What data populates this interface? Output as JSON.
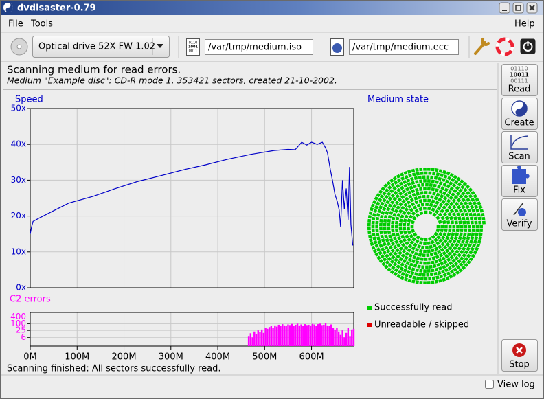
{
  "window": {
    "title": "dvdisaster-0.79"
  },
  "menu": [
    "File",
    "Tools",
    "Help"
  ],
  "toolbar": {
    "drive": "Optical drive 52X FW 1.02",
    "image_icon": [
      "0110",
      "1001",
      "0011"
    ],
    "image_file": "/var/tmp/medium.iso",
    "ecc_file": "/var/tmp/medium.ecc"
  },
  "status": {
    "heading": "Scanning medium for read errors.",
    "detail": "Medium \"Example disc\": CD-R mode 1, 353421 sectors, created 21-10-2002."
  },
  "sidebar": {
    "read_icon": [
      "01110",
      "10011",
      "00111"
    ],
    "buttons": [
      "Read",
      "Create",
      "Scan",
      "Fix",
      "Verify",
      "Stop"
    ]
  },
  "chart_data": [
    {
      "type": "line",
      "title": "Speed",
      "color": "#0000c8",
      "x": [
        0,
        3,
        6,
        20,
        50,
        82,
        134,
        180,
        228,
        280,
        330,
        374,
        420,
        470,
        520,
        550,
        565,
        579,
        590,
        600,
        612,
        623,
        630,
        634,
        640,
        645,
        650,
        655,
        659,
        662,
        666,
        670,
        674,
        678,
        681,
        684,
        688
      ],
      "values": [
        15,
        17,
        18.5,
        19.5,
        21.5,
        23.6,
        25.5,
        27.6,
        29.6,
        31.3,
        33,
        34.3,
        35.8,
        37.2,
        38.3,
        38.6,
        38.5,
        40.6,
        39.8,
        40.6,
        40,
        40.6,
        39,
        37.6,
        33,
        29.7,
        26,
        24,
        21.7,
        17,
        30,
        22,
        27.7,
        19,
        33.7,
        17.7,
        11.8
      ],
      "xlim": [
        0,
        690
      ],
      "xticks": [
        0,
        100,
        200,
        300,
        400,
        500,
        600
      ],
      "ylim": [
        0,
        50
      ],
      "yticks": [
        {
          "value": 0,
          "label": "0x"
        },
        {
          "value": 10,
          "label": "10x"
        },
        {
          "value": 20,
          "label": "20x"
        },
        {
          "value": 30,
          "label": "30x"
        },
        {
          "value": 40,
          "label": "40x"
        },
        {
          "value": 50,
          "label": "50x"
        }
      ],
      "grid": true
    },
    {
      "type": "bar",
      "title": "C2 errors",
      "color": "#ff00ff",
      "x": [
        466,
        470,
        474,
        478,
        482,
        486,
        490,
        494,
        498,
        502,
        506,
        510,
        514,
        518,
        522,
        526,
        530,
        534,
        538,
        542,
        546,
        550,
        554,
        558,
        562,
        566,
        570,
        574,
        578,
        582,
        586,
        590,
        594,
        598,
        602,
        606,
        610,
        614,
        618,
        622,
        626,
        630,
        634,
        638,
        642,
        646,
        650,
        654,
        658,
        662,
        666,
        670,
        674,
        678,
        682,
        686,
        690
      ],
      "values": [
        8,
        14,
        6,
        20,
        12,
        25,
        18,
        30,
        15,
        40,
        35,
        50,
        60,
        45,
        70,
        55,
        80,
        65,
        90,
        70,
        60,
        85,
        75,
        95,
        65,
        80,
        100,
        70,
        85,
        60,
        90,
        75,
        80,
        70,
        95,
        85,
        65,
        90,
        100,
        75,
        80,
        120,
        70,
        60,
        85,
        40,
        30,
        45,
        20,
        10,
        25,
        6,
        15,
        40,
        8,
        30,
        35
      ],
      "xlim": [
        0,
        690
      ],
      "xticks": [
        {
          "value": 0,
          "label": "0M"
        },
        {
          "value": 100,
          "label": "100M"
        },
        {
          "value": 200,
          "label": "200M"
        },
        {
          "value": 300,
          "label": "300M"
        },
        {
          "value": 400,
          "label": "400M"
        },
        {
          "value": 500,
          "label": "500M"
        },
        {
          "value": 600,
          "label": "600M"
        }
      ],
      "ylim": [
        1,
        1000
      ],
      "yticks": [
        6,
        25,
        100,
        400
      ],
      "log_scale": true,
      "grid": true
    }
  ],
  "medium_state": {
    "title": "Medium state",
    "legend": [
      {
        "name": "Successfully read",
        "color": "#00cc00"
      },
      {
        "name": "Unreadable / skipped",
        "color": "#dd0000"
      }
    ]
  },
  "footer": {
    "message": "Scanning finished: All sectors successfully read.",
    "view_log": "View log"
  }
}
